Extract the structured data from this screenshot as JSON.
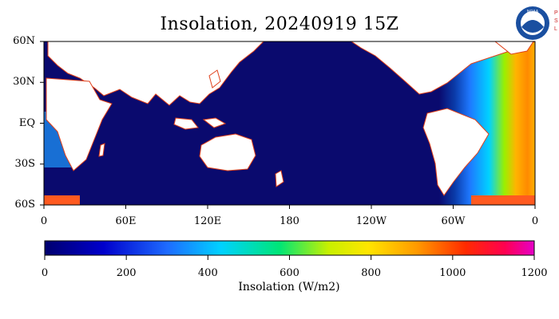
{
  "title": "Insolation, 20240919 15Z",
  "logo": {
    "icon": "noaa-logo",
    "side_text": "PSL"
  },
  "map": {
    "y_ticks": [
      {
        "label": "60N",
        "lat": 60
      },
      {
        "label": "30N",
        "lat": 30
      },
      {
        "label": "EQ",
        "lat": 0
      },
      {
        "label": "30S",
        "lat": -30
      },
      {
        "label": "60S",
        "lat": -60
      }
    ],
    "x_ticks": [
      {
        "label": "0",
        "lon": 0
      },
      {
        "label": "60E",
        "lon": 60
      },
      {
        "label": "120E",
        "lon": 120
      },
      {
        "label": "180",
        "lon": 180
      },
      {
        "label": "120W",
        "lon": 240
      },
      {
        "label": "60W",
        "lon": 300
      },
      {
        "label": "0",
        "lon": 360
      }
    ],
    "lon_range": [
      0,
      360
    ],
    "lat_range": [
      -60,
      60
    ],
    "night_color": "#0a0a6e",
    "land_color": "#ffffff"
  },
  "colorbar": {
    "label": "Insolation (W/m2)",
    "range": [
      0,
      1200
    ],
    "ticks": [
      "0",
      "200",
      "400",
      "600",
      "800",
      "1000",
      "1200"
    ],
    "colors": [
      "#00006e",
      "#0000cc",
      "#1e6bff",
      "#00d2ff",
      "#00e676",
      "#c8f000",
      "#ffe600",
      "#ff9a00",
      "#ff2a00",
      "#ff0050",
      "#e600c8"
    ]
  }
}
